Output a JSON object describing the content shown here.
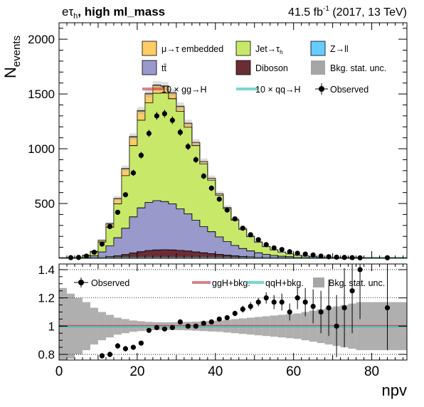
{
  "header": {
    "channel_main": "eτ",
    "channel_sub": "h",
    "category": ", high ml_mass",
    "lumi_value": "41.5 fb",
    "lumi_exp": "-1",
    "lumi_rest": " (2017, 13 TeV)"
  },
  "colors": {
    "embedded": "#ffcc66",
    "jet_tau": "#c8e86a",
    "zll": "#66ccff",
    "ttbar": "#9999cc",
    "diboson": "#6b2d35",
    "bkg_unc": "#a6a6a6",
    "ggH_line": "#c0394b",
    "qqH_line": "#2abfb0"
  },
  "chart_data": [
    {
      "type": "area",
      "xlabel": "npv",
      "ylabel_main": "N",
      "ylabel_sub": "events",
      "xlim": [
        0,
        89
      ],
      "ylim": [
        0,
        2150
      ],
      "yticks": [
        500,
        1000,
        1500,
        2000
      ],
      "xticks": [
        0,
        20,
        40,
        60,
        80
      ],
      "bin_edges": [
        0,
        2,
        4,
        6,
        8,
        10,
        12,
        14,
        16,
        18,
        20,
        22,
        24,
        26,
        28,
        30,
        32,
        34,
        36,
        38,
        40,
        42,
        44,
        46,
        48,
        50,
        52,
        54,
        56,
        58,
        60,
        62,
        64,
        66,
        68,
        70,
        72,
        74,
        76,
        89
      ],
      "legend": [
        {
          "key": "embedded",
          "label": "μ→τ embedded"
        },
        {
          "key": "jet_tau",
          "label": "Jet→τ",
          "sub": "h"
        },
        {
          "key": "zll",
          "label": "Z→ll"
        },
        {
          "key": "ttbar",
          "label": "tt̄"
        },
        {
          "key": "diboson",
          "label": "Diboson"
        },
        {
          "key": "bkg_unc",
          "label": "Bkg. stat. unc."
        },
        {
          "key": "ggH_line",
          "label": "10 × gg→H"
        },
        {
          "key": "qqH_line",
          "label": "10 × qq→H"
        },
        {
          "key": "observed",
          "label": "Observed"
        }
      ],
      "series": [
        {
          "name": "Diboson",
          "values": [
            0,
            0,
            0,
            2,
            4,
            8,
            14,
            22,
            34,
            48,
            60,
            70,
            76,
            78,
            76,
            72,
            66,
            58,
            50,
            42,
            35,
            28,
            22,
            17,
            13,
            10,
            7,
            5,
            4,
            3,
            2,
            1.5,
            1,
            0.8,
            0.5,
            0.3,
            0.2,
            0.1,
            0.1
          ]
        },
        {
          "name": "tt̄",
          "values": [
            0,
            1,
            3,
            8,
            18,
            50,
            100,
            165,
            240,
            330,
            400,
            440,
            450,
            440,
            420,
            380,
            340,
            290,
            240,
            200,
            160,
            125,
            95,
            72,
            54,
            40,
            29,
            21,
            15,
            11,
            8,
            6,
            4,
            3,
            2,
            1.5,
            1,
            0.7,
            0.5
          ]
        },
        {
          "name": "Jet→τh",
          "values": [
            0,
            2,
            6,
            15,
            35,
            90,
            170,
            310,
            480,
            650,
            800,
            910,
            980,
            990,
            960,
            890,
            790,
            680,
            570,
            470,
            380,
            300,
            230,
            175,
            130,
            96,
            70,
            50,
            36,
            26,
            18,
            13,
            9,
            6,
            4,
            3,
            2,
            1.5,
            1
          ]
        },
        {
          "name": "μ→τ embedded",
          "values": [
            0,
            0,
            1,
            3,
            6,
            15,
            30,
            46,
            62,
            78,
            83,
            80,
            72,
            62,
            52,
            43,
            35,
            28,
            22,
            17,
            13,
            10,
            8,
            6,
            4.5,
            3.3,
            2.4,
            1.7,
            1.2,
            0.9,
            0.6,
            0.4,
            0.3,
            0.2,
            0.15,
            0.1,
            0.05,
            0.03,
            0.02
          ]
        },
        {
          "name": "Z→ll",
          "values": [
            0,
            0,
            0,
            0,
            1,
            2,
            3,
            4,
            5,
            6,
            6,
            6,
            5,
            5,
            4,
            4,
            3,
            3,
            2,
            2,
            1,
            1,
            1,
            1,
            0,
            0,
            0,
            0,
            0,
            0,
            0,
            0,
            0,
            0,
            0,
            0,
            0,
            0,
            0
          ]
        }
      ],
      "observed": {
        "x": [
          3,
          5,
          7,
          9,
          11,
          13,
          15,
          17,
          19,
          21,
          23,
          25,
          27,
          29,
          31,
          33,
          35,
          37,
          39,
          41,
          43,
          45,
          47,
          49,
          51,
          53,
          55,
          57,
          59,
          61,
          63,
          65,
          67,
          69,
          71,
          73,
          75,
          77,
          84
        ],
        "y": [
          6,
          8,
          20,
          55,
          130,
          290,
          420,
          580,
          780,
          940,
          1140,
          1300,
          1320,
          1260,
          1150,
          1020,
          900,
          750,
          640,
          540,
          440,
          360,
          275,
          215,
          170,
          125,
          95,
          80,
          60,
          46,
          38,
          30,
          20,
          14,
          10,
          8,
          6,
          4,
          5
        ]
      }
    },
    {
      "type": "scatter",
      "xlabel": "npv",
      "xlim": [
        0,
        89
      ],
      "ylim": [
        0.76,
        1.44
      ],
      "yticks": [
        0.8,
        1,
        1.2,
        1.4
      ],
      "ytick_labels": [
        "0.8",
        "1",
        "1.2",
        "1.4"
      ],
      "xticks": [
        0,
        20,
        40,
        60,
        80
      ],
      "xtick_labels": [
        "0",
        "20",
        "40",
        "60",
        "80"
      ],
      "legend": [
        {
          "key": "observed",
          "label": "Observed"
        },
        {
          "key": "ggH_line",
          "label": "ggH+bkg."
        },
        {
          "key": "qqH_line",
          "label": "qqH+bkg."
        },
        {
          "key": "bkg_unc",
          "label": "Bkg. stat. unc."
        }
      ],
      "bkg_unc_halfwidth": [
        0.27,
        0.23,
        0.2,
        0.17,
        0.13,
        0.1,
        0.08,
        0.06,
        0.05,
        0.04,
        0.035,
        0.03,
        0.028,
        0.027,
        0.027,
        0.028,
        0.03,
        0.032,
        0.035,
        0.038,
        0.04,
        0.045,
        0.05,
        0.055,
        0.06,
        0.065,
        0.07,
        0.075,
        0.08,
        0.085,
        0.09,
        0.1,
        0.11,
        0.12,
        0.13,
        0.14,
        0.15,
        0.16,
        0.17
      ],
      "ratio": {
        "x": [
          11,
          13,
          15,
          17,
          19,
          21,
          23,
          25,
          27,
          29,
          31,
          33,
          35,
          37,
          39,
          41,
          43,
          45,
          47,
          49,
          51,
          53,
          55,
          57,
          59,
          61,
          63,
          65,
          67,
          69,
          71,
          73,
          75,
          77,
          84
        ],
        "y": [
          0.79,
          0.8,
          0.86,
          0.84,
          0.85,
          0.88,
          0.97,
          0.99,
          0.98,
          0.99,
          1.03,
          1.0,
          1.0,
          1.02,
          1.03,
          1.05,
          1.06,
          1.09,
          1.12,
          1.14,
          1.17,
          1.2,
          1.17,
          1.17,
          1.1,
          1.2,
          1.17,
          1.14,
          1.1,
          1.13,
          1.0,
          1.13,
          1.25,
          1.4,
          1.13
        ],
        "err": [
          0.02,
          0.02,
          0.02,
          0.02,
          0.01,
          0.01,
          0.01,
          0.01,
          0.01,
          0.01,
          0.01,
          0.01,
          0.01,
          0.01,
          0.01,
          0.01,
          0.015,
          0.02,
          0.025,
          0.03,
          0.03,
          0.04,
          0.05,
          0.06,
          0.06,
          0.08,
          0.1,
          0.12,
          0.15,
          0.2,
          0.22,
          0.28,
          0.3,
          0.35,
          0.3
        ]
      }
    }
  ]
}
